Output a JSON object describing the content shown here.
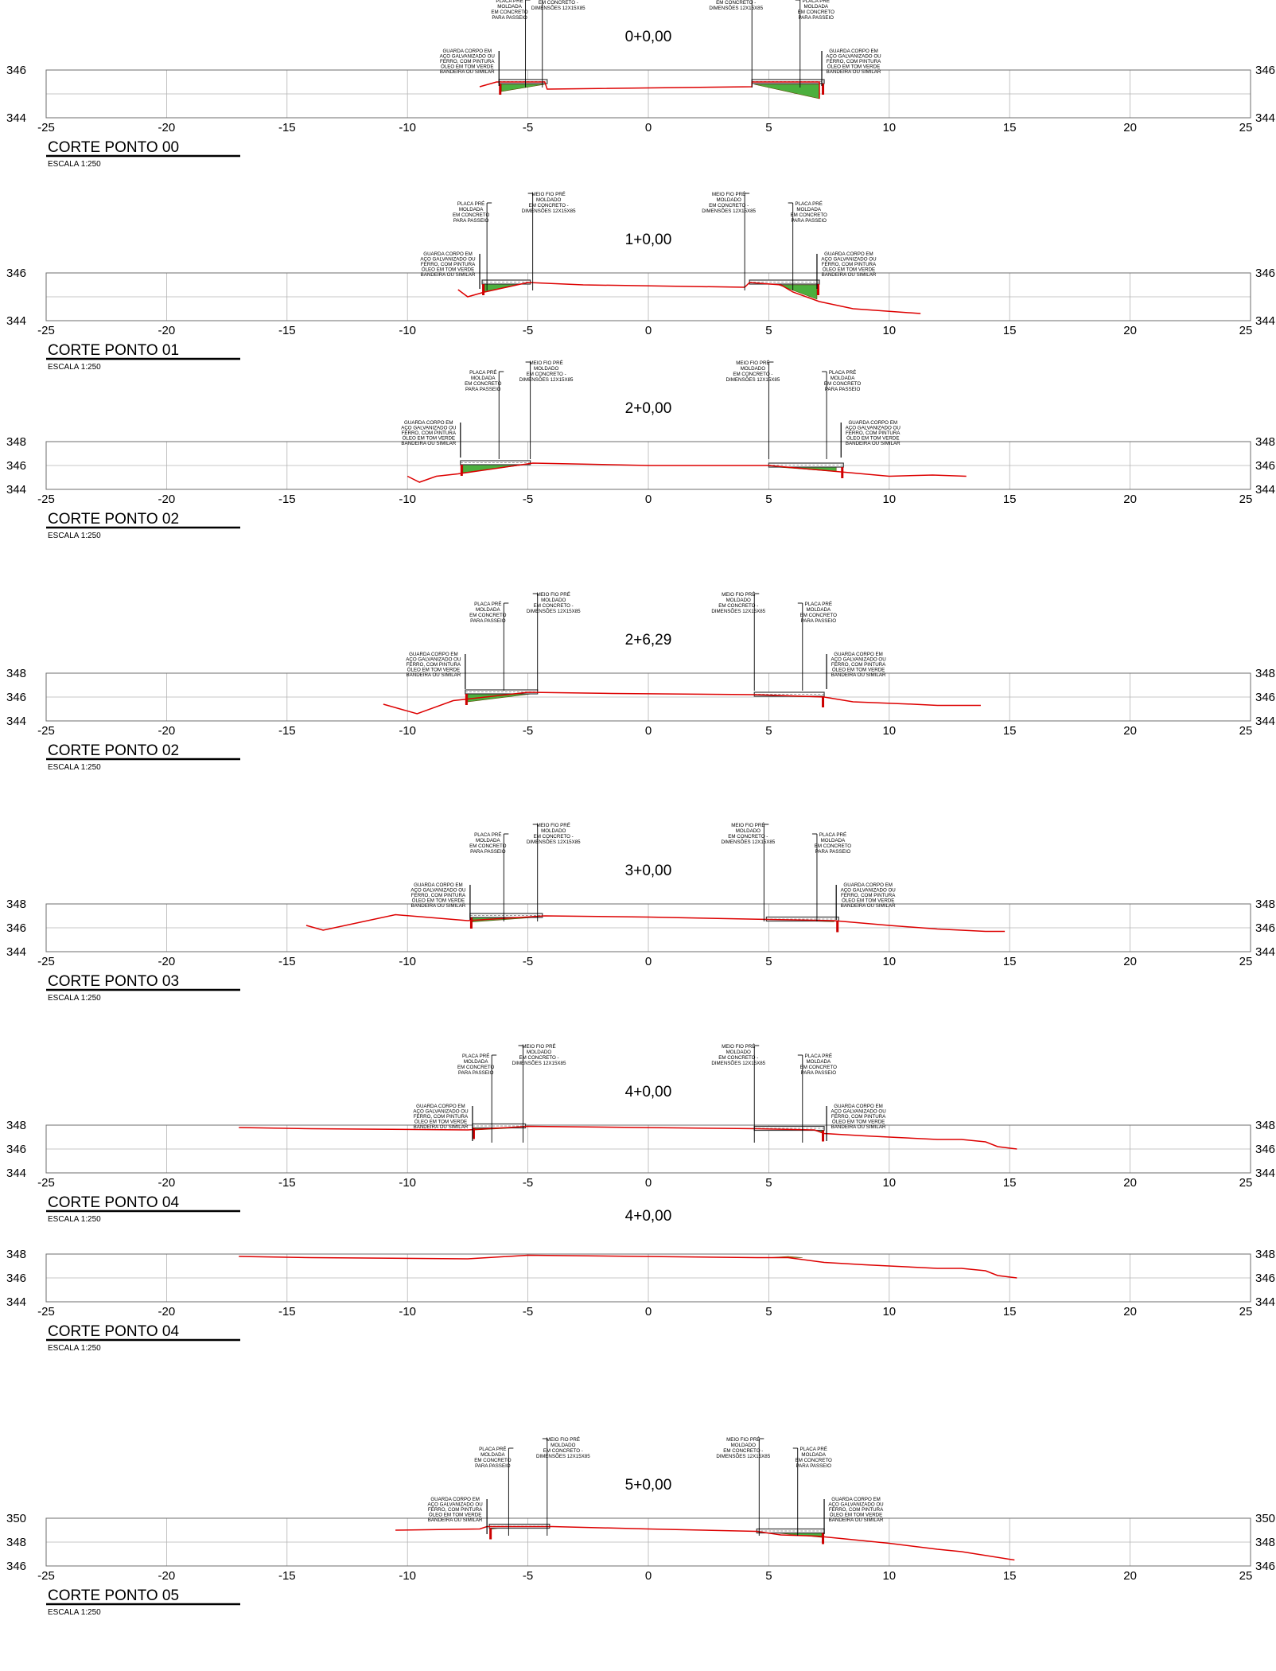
{
  "colors": {
    "terrain": "#dd0000",
    "fill": "#4caf3e",
    "fill_orange": "#e0801a",
    "curb": "#cc0000",
    "grid": "#b4b4b4",
    "frame": "#6e6e6e",
    "slab": "#3a3a3a"
  },
  "x_axis": {
    "range": [
      -25,
      25
    ],
    "ticks": [
      "-25",
      "-20",
      "-15",
      "-10",
      "-5",
      "0",
      "5",
      "10",
      "15",
      "20",
      "25"
    ]
  },
  "labels": {
    "placa": [
      "PLACA PRÉ",
      "MOLDADA",
      "EM CONCRETO",
      "PARA PASSEIO"
    ],
    "meio_fio": [
      "MEIO FIO PRÉ",
      "MOLDADO",
      "EM CONCRETO -",
      "DIMENSÕES 12X15X85"
    ],
    "guarda": [
      "GUARDA CORPO EM",
      "AÇO GALVANIZADO OU",
      "FERRO, COM PINTURA",
      "ÓLEO EM TOM VERDE",
      "BANDEIRA OU SIMILAR"
    ]
  },
  "sections": [
    {
      "title": "CORTE PONTO 00",
      "scale": "ESCALA 1:250",
      "station": "0+0,00",
      "y_ticks": [
        "346",
        "344"
      ],
      "y_max": 346,
      "y_min": 344,
      "terrain": [
        [
          -7,
          345.3
        ],
        [
          -6.3,
          345.5
        ],
        [
          -4.3,
          345.5
        ],
        [
          -4.2,
          345.2
        ],
        [
          4.3,
          345.3
        ],
        [
          4.3,
          345.5
        ],
        [
          7.1,
          345.5
        ],
        [
          7.1,
          344.8
        ]
      ],
      "left_walk": [
        -6.2,
        -4.2
      ],
      "right_walk": [
        4.3,
        7.3
      ],
      "fills": [
        {
          "color": "fill",
          "points": [
            [
              -6.1,
              345.4
            ],
            [
              -4.3,
              345.4
            ],
            [
              -6.1,
              345.1
            ]
          ]
        },
        {
          "color": "fill",
          "points": [
            [
              4.4,
              345.4
            ],
            [
              7.1,
              345.4
            ],
            [
              7.1,
              344.8
            ]
          ]
        }
      ],
      "callouts": {
        "placa_left": -5.1,
        "meio_left": -4.4,
        "meio_right": 4.3,
        "placa_right": 6.3,
        "guarda_left": -6.2,
        "guarda_right": 7.2
      }
    },
    {
      "title": "CORTE PONTO 01",
      "scale": "ESCALA 1:250",
      "station": "1+0,00",
      "y_ticks": [
        "346",
        "344"
      ],
      "y_max": 346,
      "y_min": 344,
      "terrain": [
        [
          -7.9,
          345.3
        ],
        [
          -7.5,
          345.0
        ],
        [
          -6.8,
          345.2
        ],
        [
          -5,
          345.6
        ],
        [
          -2.7,
          345.5
        ],
        [
          -2.7,
          345.5
        ],
        [
          4.0,
          345.4
        ],
        [
          4.2,
          345.6
        ],
        [
          5.5,
          345.5
        ],
        [
          6,
          345.2
        ],
        [
          7.1,
          344.8
        ],
        [
          8.5,
          344.5
        ],
        [
          11.3,
          344.3
        ]
      ],
      "left_walk": [
        -6.9,
        -4.9
      ],
      "right_walk": [
        4.2,
        7.1
      ],
      "fills": [
        {
          "color": "fill",
          "points": [
            [
              -6.8,
              345.6
            ],
            [
              -5.0,
              345.6
            ],
            [
              -6.8,
              345.2
            ]
          ]
        },
        {
          "color": "fill",
          "points": [
            [
              5.4,
              345.5
            ],
            [
              7.0,
              345.5
            ],
            [
              7.0,
              344.9
            ]
          ]
        }
      ],
      "callouts": {
        "placa_left": -6.7,
        "meio_left": -4.8,
        "meio_right": 4.0,
        "placa_right": 6.0,
        "guarda_left": -7.0,
        "guarda_right": 7.0
      }
    },
    {
      "title": "CORTE PONTO 02",
      "scale": "ESCALA 1:250",
      "station": "2+0,00",
      "y_ticks": [
        "348",
        "346",
        "344"
      ],
      "y_max": 348,
      "y_min": 344,
      "terrain": [
        [
          -10,
          345.1
        ],
        [
          -9.5,
          344.6
        ],
        [
          -8.8,
          345.1
        ],
        [
          -7.9,
          345.3
        ],
        [
          -4.8,
          346.2
        ],
        [
          0,
          346
        ],
        [
          5,
          346
        ],
        [
          7.8,
          345.5
        ],
        [
          10,
          345.1
        ],
        [
          11.8,
          345.2
        ],
        [
          13.2,
          345.1
        ]
      ],
      "left_walk": [
        -7.8,
        -4.9
      ],
      "right_walk": [
        5.0,
        8.1
      ],
      "fills": [
        {
          "color": "fill",
          "points": [
            [
              -7.7,
              346.1
            ],
            [
              -5.0,
              346.1
            ],
            [
              -7.7,
              345.4
            ]
          ]
        },
        {
          "color": "fill",
          "points": [
            [
              5.1,
              345.9
            ],
            [
              7.8,
              345.9
            ],
            [
              7.8,
              345.5
            ]
          ]
        }
      ],
      "callouts": {
        "placa_left": -6.2,
        "meio_left": -4.9,
        "meio_right": 5.0,
        "placa_right": 7.4,
        "guarda_left": -7.8,
        "guarda_right": 8.0
      }
    },
    {
      "title": "CORTE PONTO 02",
      "scale": "ESCALA 1:250",
      "station": "2+6,29",
      "y_ticks": [
        "348",
        "346",
        "344"
      ],
      "y_max": 348,
      "y_min": 344,
      "terrain": [
        [
          -11,
          345.4
        ],
        [
          -9.6,
          344.6
        ],
        [
          -8.1,
          345.7
        ],
        [
          -5,
          346.4
        ],
        [
          -1.5,
          346.3
        ],
        [
          4.5,
          346.2
        ],
        [
          7.3,
          346
        ],
        [
          8.5,
          345.6
        ],
        [
          11,
          345.4
        ],
        [
          12,
          345.3
        ],
        [
          13.8,
          345.3
        ]
      ],
      "left_walk": [
        -7.6,
        -4.6
      ],
      "right_walk": [
        4.4,
        7.3
      ],
      "fills": [
        {
          "color": "fill",
          "points": [
            [
              -7.5,
              346.3
            ],
            [
              -4.7,
              346.3
            ],
            [
              -7.5,
              345.6
            ]
          ]
        },
        {
          "color": "fill",
          "points": [
            [
              4.5,
              346.1
            ],
            [
              7.2,
              346.1
            ],
            [
              7.2,
              346.0
            ]
          ]
        }
      ],
      "callouts": {
        "placa_left": -6.0,
        "meio_left": -4.6,
        "meio_right": 4.4,
        "placa_right": 6.4,
        "guarda_left": -7.6,
        "guarda_right": 7.4
      }
    },
    {
      "title": "CORTE PONTO 03",
      "scale": "ESCALA 1:250",
      "station": "3+0,00",
      "y_ticks": [
        "348",
        "346",
        "344"
      ],
      "y_max": 348,
      "y_min": 344,
      "terrain": [
        [
          -14.2,
          346.2
        ],
        [
          -13.5,
          345.8
        ],
        [
          -10.5,
          347.1
        ],
        [
          -7.5,
          346.6
        ],
        [
          -4.3,
          347
        ],
        [
          0,
          346.9
        ],
        [
          5,
          346.7
        ],
        [
          7.7,
          346.6
        ],
        [
          10,
          346.2
        ],
        [
          12,
          345.9
        ],
        [
          14,
          345.7
        ],
        [
          14.8,
          345.7
        ]
      ],
      "left_walk": [
        -7.4,
        -4.4
      ],
      "right_walk": [
        4.9,
        7.9
      ],
      "fills": [
        {
          "color": "fill",
          "points": [
            [
              -7.3,
              346.9
            ],
            [
              -4.5,
              346.9
            ],
            [
              -7.3,
              346.5
            ]
          ]
        },
        {
          "color": "fill_orange",
          "points": [
            [
              5.0,
              346.7
            ],
            [
              7.7,
              346.7
            ],
            [
              7.7,
              346.5
            ]
          ]
        }
      ],
      "callouts": {
        "placa_left": -6.0,
        "meio_left": -4.6,
        "meio_right": 4.8,
        "placa_right": 7.0,
        "guarda_left": -7.4,
        "guarda_right": 7.8
      }
    },
    {
      "title": "CORTE PONTO 04",
      "scale": "ESCALA 1:250",
      "station": "4+0,00",
      "y_ticks": [
        "348",
        "346",
        "344"
      ],
      "y_max": 348,
      "y_min": 344,
      "terrain": [
        [
          -17,
          347.8
        ],
        [
          -14,
          347.7
        ],
        [
          -7.5,
          347.6
        ],
        [
          -5,
          347.9
        ],
        [
          4.5,
          347.7
        ],
        [
          6.9,
          347.6
        ],
        [
          7.3,
          347.3
        ],
        [
          9,
          347.1
        ],
        [
          10,
          347.0
        ],
        [
          12,
          346.8
        ],
        [
          13,
          346.8
        ],
        [
          14,
          346.6
        ],
        [
          14.5,
          346.2
        ],
        [
          15.3,
          346.0
        ]
      ],
      "left_walk": [
        -7.3,
        -5.1
      ],
      "right_walk": [
        4.4,
        7.3
      ],
      "fills": [
        {
          "color": "fill",
          "points": [
            [
              -7.2,
              347.8
            ],
            [
              -5.2,
              347.8
            ],
            [
              -7.2,
              347.6
            ]
          ]
        },
        {
          "color": "fill",
          "points": [
            [
              6.6,
              347.7
            ],
            [
              7.2,
              347.7
            ],
            [
              7.2,
              347.4
            ]
          ]
        }
      ],
      "callouts": {
        "placa_left": -6.5,
        "meio_left": -5.2,
        "meio_right": 4.4,
        "placa_right": 6.4,
        "guarda_left": -7.3,
        "guarda_right": 7.4
      }
    },
    {
      "title": "CORTE PONTO 04",
      "scale": "ESCALA 1:250",
      "station": "4+0,00",
      "y_ticks": [
        "348",
        "346",
        "344"
      ],
      "y_max": 348,
      "y_min": 344,
      "terrain": [
        [
          -17,
          347.8
        ],
        [
          -14,
          347.7
        ],
        [
          -7.5,
          347.6
        ],
        [
          -5,
          347.9
        ],
        [
          4.5,
          347.7
        ],
        [
          5.8,
          347.7
        ],
        [
          7.3,
          347.3
        ],
        [
          9,
          347.1
        ],
        [
          10,
          347.0
        ],
        [
          12,
          346.8
        ],
        [
          13,
          346.8
        ],
        [
          14,
          346.6
        ],
        [
          14.5,
          346.2
        ],
        [
          15.3,
          346.0
        ]
      ],
      "left_walk": null,
      "right_walk": null,
      "fills": [
        {
          "color": "fill_orange",
          "points": [
            [
              5.0,
              347.7
            ],
            [
              5.8,
              347.8
            ],
            [
              6.4,
              347.7
            ]
          ]
        }
      ],
      "callouts": null
    },
    {
      "title": "CORTE PONTO 05",
      "scale": "ESCALA 1:250",
      "station": "5+0,00",
      "y_ticks": [
        "350",
        "348",
        "346"
      ],
      "y_max": 350,
      "y_min": 346,
      "terrain": [
        [
          -10.5,
          349
        ],
        [
          -7,
          349.1
        ],
        [
          -6.7,
          349.3
        ],
        [
          -4,
          349.3
        ],
        [
          0,
          349.1
        ],
        [
          4.5,
          348.9
        ],
        [
          5.5,
          348.6
        ],
        [
          7,
          348.5
        ],
        [
          8.5,
          348.2
        ],
        [
          10,
          347.9
        ],
        [
          12,
          347.4
        ],
        [
          13,
          347.2
        ],
        [
          15.2,
          346.5
        ]
      ],
      "left_walk": [
        -6.6,
        -4.1
      ],
      "right_walk": [
        4.5,
        7.3
      ],
      "fills": [
        {
          "color": "fill_orange",
          "points": [
            [
              -6.5,
              349.3
            ],
            [
              -5.6,
              349.3
            ],
            [
              -6.5,
              349.1
            ]
          ]
        },
        {
          "color": "fill",
          "points": [
            [
              4.6,
              348.9
            ],
            [
              7.2,
              348.9
            ],
            [
              7.2,
              348.4
            ]
          ]
        }
      ],
      "callouts": {
        "placa_left": -5.8,
        "meio_left": -4.2,
        "meio_right": 4.6,
        "placa_right": 6.2,
        "guarda_left": -6.7,
        "guarda_right": 7.3
      }
    }
  ]
}
